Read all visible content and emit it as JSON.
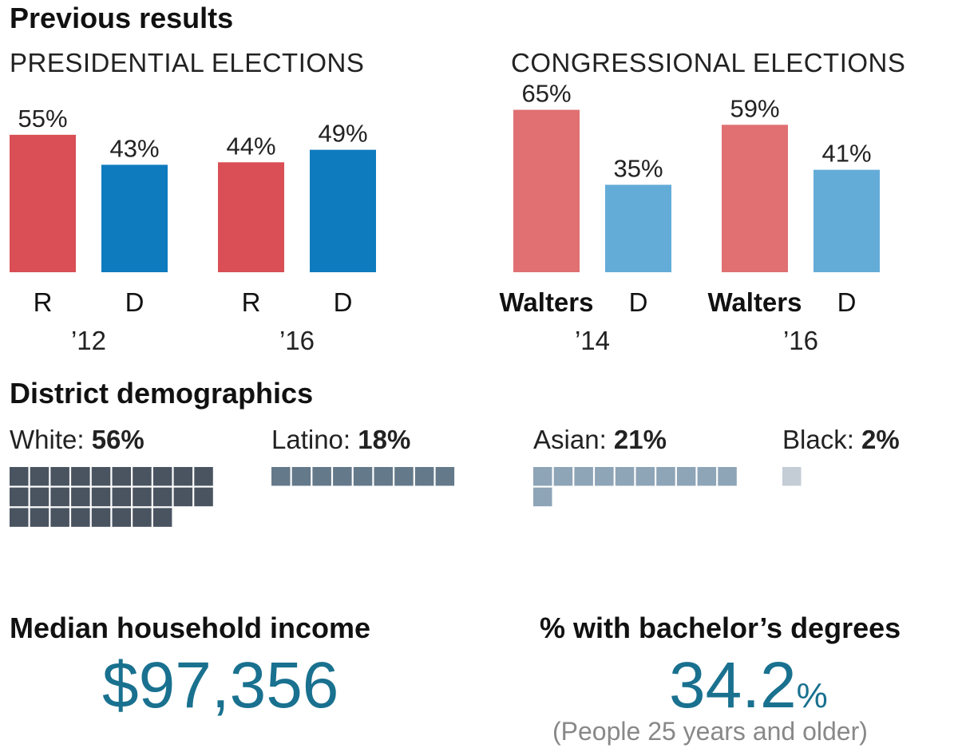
{
  "sections": {
    "previous_results": "Previous results",
    "district_demographics": "District demographics",
    "median_income_title": "Median household income",
    "bachelors_title": "% with bachelor’s degrees"
  },
  "colors": {
    "rep_presidential": "#d94f55",
    "dem_presidential": "#0f7bbf",
    "rep_congressional": "#e07072",
    "dem_congressional": "#64acd8",
    "white": "#4a5461",
    "latino": "#64798a",
    "asian": "#8ea4b7",
    "black": "#c4ccd6",
    "highlight": "#19718f"
  },
  "chart_data": [
    {
      "type": "bar",
      "title": "PRESIDENTIAL ELECTIONS",
      "unit": "%",
      "ylim": [
        0,
        65
      ],
      "groups": [
        {
          "label": "’12",
          "bars": [
            {
              "label": "R",
              "party": "R",
              "value": 55
            },
            {
              "label": "D",
              "party": "D",
              "value": 43
            }
          ]
        },
        {
          "label": "’16",
          "bars": [
            {
              "label": "R",
              "party": "R",
              "value": 44
            },
            {
              "label": "D",
              "party": "D",
              "value": 49
            }
          ]
        }
      ]
    },
    {
      "type": "bar",
      "title": "CONGRESSIONAL ELECTIONS",
      "unit": "%",
      "ylim": [
        0,
        65
      ],
      "groups": [
        {
          "label": "’14",
          "bars": [
            {
              "label": "Walters",
              "party": "R",
              "value": 65
            },
            {
              "label": "D",
              "party": "D",
              "value": 35
            }
          ]
        },
        {
          "label": "’16",
          "bars": [
            {
              "label": "Walters",
              "party": "R",
              "value": 59
            },
            {
              "label": "D",
              "party": "D",
              "value": 41
            }
          ]
        }
      ]
    },
    {
      "type": "waffle",
      "items": [
        {
          "label": "White",
          "value": 56,
          "color_key": "white"
        },
        {
          "label": "Latino",
          "value": 18,
          "color_key": "latino"
        },
        {
          "label": "Asian",
          "value": 21,
          "color_key": "asian"
        },
        {
          "label": "Black",
          "value": 2,
          "color_key": "black"
        }
      ]
    }
  ],
  "median_income": {
    "value": "$97,356"
  },
  "bachelors": {
    "value": "34.2",
    "unit": "%",
    "note": "(People 25 years and older)"
  }
}
